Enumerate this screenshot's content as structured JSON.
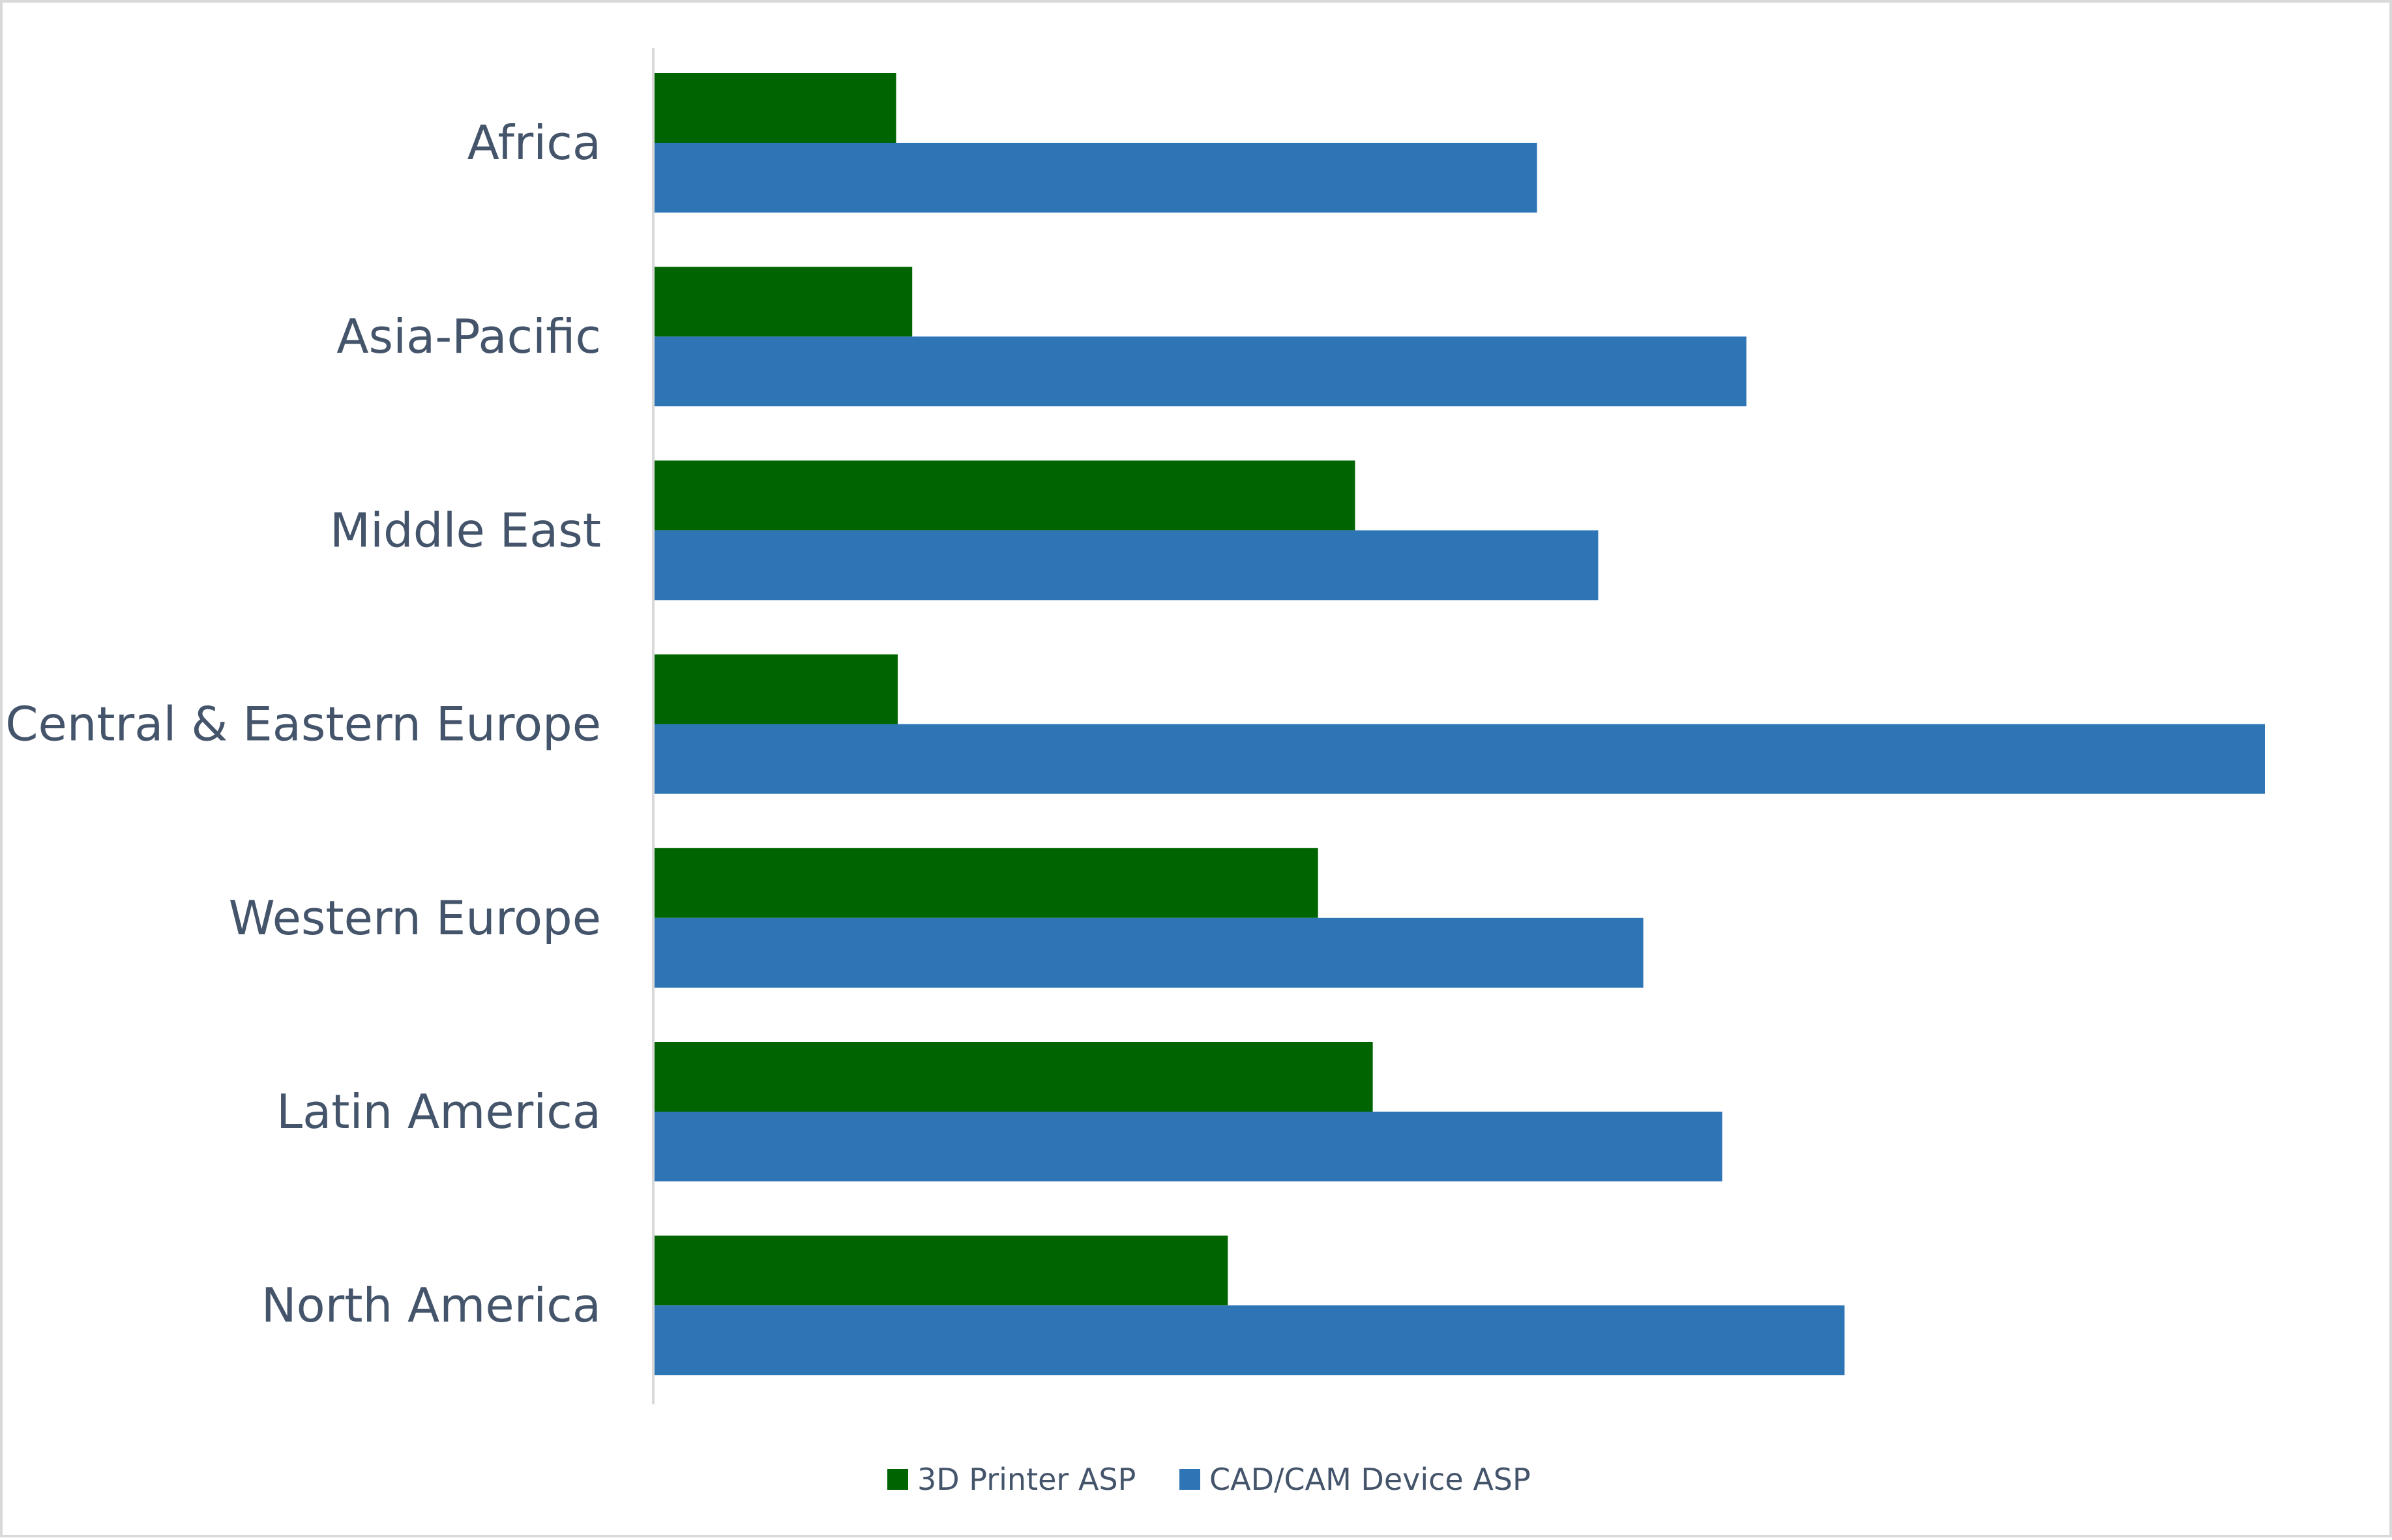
{
  "chart_data": {
    "type": "bar",
    "orientation": "horizontal",
    "categories": [
      "Africa",
      "Asia-Pacific",
      "Middle East",
      "Central & Eastern Europe",
      "Western Europe",
      "Latin America",
      "North America"
    ],
    "series": [
      {
        "name": "3D Printer ASP",
        "color": "#006400",
        "values": [
          15,
          16,
          43.5,
          15.1,
          41.2,
          44.6,
          35.6
        ]
      },
      {
        "name": "CAD/CAM Device ASP",
        "color": "#2e75b6",
        "values": [
          54.8,
          67.8,
          58.6,
          100,
          61.4,
          66.3,
          73.9
        ]
      }
    ],
    "xlim": [
      0,
      100
    ],
    "grid": false,
    "legend": "bottom"
  }
}
